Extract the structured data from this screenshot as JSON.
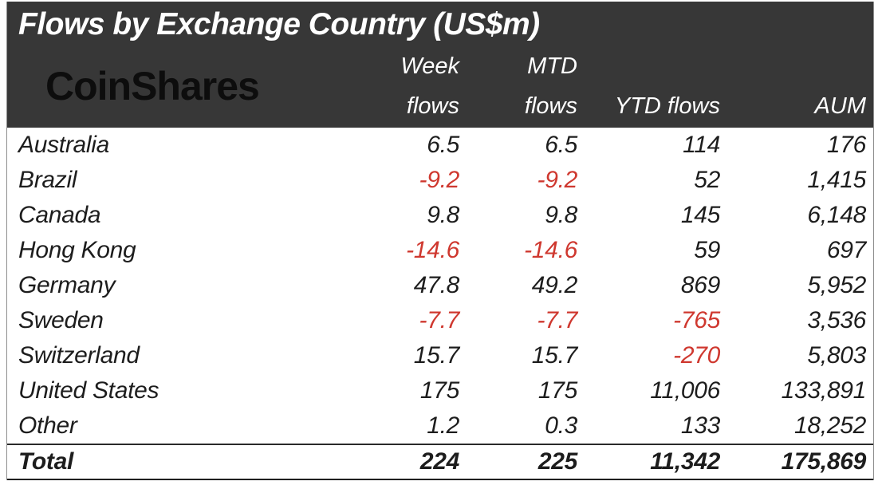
{
  "title": "Flows by Exchange Country (US$m)",
  "brand": {
    "logo_text": "CoinShares"
  },
  "table": {
    "columns": [
      {
        "id": "country",
        "lines": []
      },
      {
        "id": "week_flows",
        "lines": [
          "Week",
          "flows"
        ]
      },
      {
        "id": "mtd_flows",
        "lines": [
          "MTD",
          "flows"
        ]
      },
      {
        "id": "ytd_flows",
        "lines": [
          "YTD flows"
        ]
      },
      {
        "id": "aum",
        "lines": [
          "AUM"
        ]
      }
    ],
    "rows": [
      {
        "country": "Australia",
        "week_flows": "6.5",
        "mtd_flows": "6.5",
        "ytd_flows": "114",
        "aum": "176"
      },
      {
        "country": "Brazil",
        "week_flows": "-9.2",
        "mtd_flows": "-9.2",
        "ytd_flows": "52",
        "aum": "1,415"
      },
      {
        "country": "Canada",
        "week_flows": "9.8",
        "mtd_flows": "9.8",
        "ytd_flows": "145",
        "aum": "6,148"
      },
      {
        "country": "Hong Kong",
        "week_flows": "-14.6",
        "mtd_flows": "-14.6",
        "ytd_flows": "59",
        "aum": "697"
      },
      {
        "country": "Germany",
        "week_flows": "47.8",
        "mtd_flows": "49.2",
        "ytd_flows": "869",
        "aum": "5,952"
      },
      {
        "country": "Sweden",
        "week_flows": "-7.7",
        "mtd_flows": "-7.7",
        "ytd_flows": "-765",
        "aum": "3,536"
      },
      {
        "country": "Switzerland",
        "week_flows": "15.7",
        "mtd_flows": "15.7",
        "ytd_flows": "-270",
        "aum": "5,803"
      },
      {
        "country": "United States",
        "week_flows": "175",
        "mtd_flows": "175",
        "ytd_flows": "11,006",
        "aum": "133,891"
      },
      {
        "country": "Other",
        "week_flows": "1.2",
        "mtd_flows": "0.3",
        "ytd_flows": "133",
        "aum": "18,252"
      }
    ],
    "total": {
      "country": "Total",
      "week_flows": "224",
      "mtd_flows": "225",
      "ytd_flows": "11,342",
      "aum": "175,869"
    }
  },
  "chart_data": {
    "type": "table",
    "title": "Flows by Exchange Country (US$m)",
    "columns": [
      "Country",
      "Week flows",
      "MTD flows",
      "YTD flows",
      "AUM"
    ],
    "rows": [
      [
        "Australia",
        6.5,
        6.5,
        114,
        176
      ],
      [
        "Brazil",
        -9.2,
        -9.2,
        52,
        1415
      ],
      [
        "Canada",
        9.8,
        9.8,
        145,
        6148
      ],
      [
        "Hong Kong",
        -14.6,
        -14.6,
        59,
        697
      ],
      [
        "Germany",
        47.8,
        49.2,
        869,
        5952
      ],
      [
        "Sweden",
        -7.7,
        -7.7,
        -765,
        3536
      ],
      [
        "Switzerland",
        15.7,
        15.7,
        -270,
        5803
      ],
      [
        "United States",
        175,
        175,
        11006,
        133891
      ],
      [
        "Other",
        1.2,
        0.3,
        133,
        18252
      ]
    ],
    "total_row": [
      "Total",
      224,
      225,
      11342,
      175869
    ],
    "negative_values_color": "#cf382f"
  },
  "colors": {
    "header_bg": "#373737",
    "negative": "#cf382f",
    "body_text": "#1d1d1d",
    "title_text": "#ffffff",
    "logo_text": "#0d0d0d",
    "border": "#8e8e8e"
  }
}
